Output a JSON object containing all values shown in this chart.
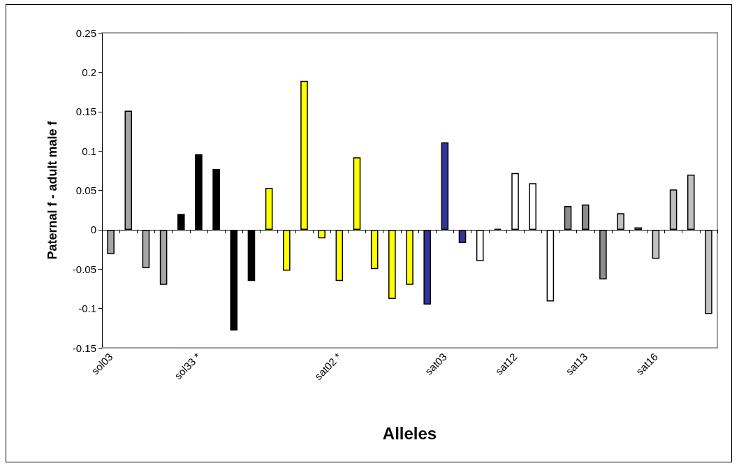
{
  "chart_data": {
    "type": "bar",
    "xlabel": "Alleles",
    "ylabel": "Paternal f - adult male f",
    "categories": [
      "sol03",
      null,
      null,
      null,
      null,
      "sol33 *",
      null,
      null,
      null,
      null,
      null,
      null,
      null,
      "sat02 *",
      null,
      null,
      null,
      null,
      null,
      "sat03",
      null,
      null,
      null,
      "sat12",
      null,
      null,
      null,
      "sat13",
      null,
      null,
      null,
      "sat16",
      null,
      null,
      null
    ],
    "values": [
      -0.031,
      0.151,
      -0.049,
      -0.07,
      0.02,
      0.096,
      0.077,
      -0.128,
      -0.065,
      0.053,
      -0.052,
      0.189,
      -0.011,
      -0.065,
      0.092,
      -0.05,
      -0.088,
      -0.07,
      -0.095,
      0.111,
      -0.017,
      -0.04,
      0.001,
      0.072,
      0.059,
      -0.091,
      0.03,
      0.032,
      -0.063,
      0.021,
      0.003,
      -0.037,
      0.051,
      0.07,
      -0.107
    ],
    "colors": [
      "#a6a6a6",
      "#a6a6a6",
      "#a6a6a6",
      "#a6a6a6",
      "#000000",
      "#000000",
      "#000000",
      "#000000",
      "#000000",
      "#ffff00",
      "#ffff00",
      "#ffff00",
      "#ffff00",
      "#ffff00",
      "#ffff00",
      "#ffff00",
      "#ffff00",
      "#ffff00",
      "#333399",
      "#333399",
      "#333399",
      "#ffffff",
      "#000000",
      "#ffffff",
      "#ffffff",
      "#ffffff",
      "#8c8c8c",
      "#8c8c8c",
      "#8c8c8c",
      "#c0c0c0",
      "#c0c0c0",
      "#c0c0c0",
      "#c0c0c0",
      "#c0c0c0",
      "#c0c0c0"
    ],
    "ylim": [
      -0.15,
      0.25
    ],
    "yticks": [
      -0.15,
      -0.1,
      -0.05,
      0,
      0.05,
      0.1,
      0.15,
      0.2,
      0.25
    ]
  }
}
